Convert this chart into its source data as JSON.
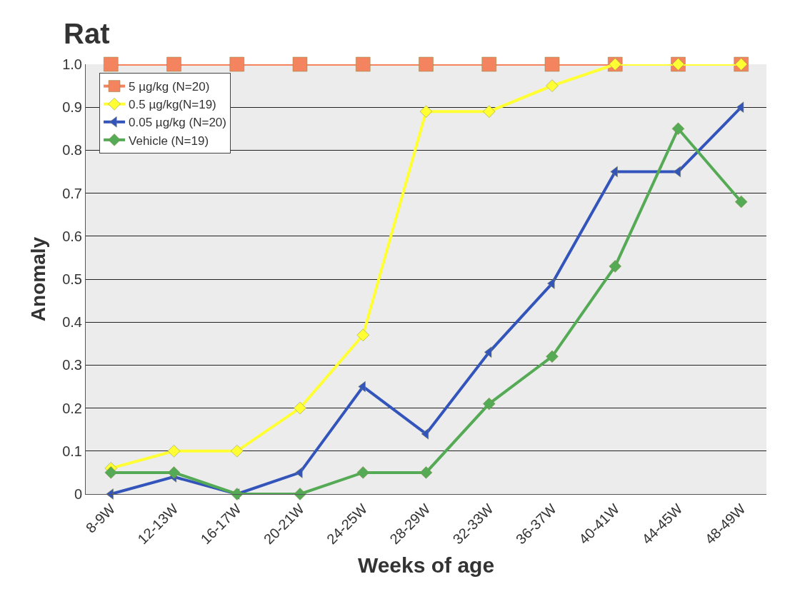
{
  "chart_data": {
    "type": "line",
    "title": "Rat",
    "xlabel": "Weeks of age",
    "ylabel": "Anomaly",
    "categories": [
      "8-9W",
      "12-13W",
      "16-17W",
      "20-21W",
      "24-25W",
      "28-29W",
      "32-33W",
      "36-37W",
      "40-41W",
      "44-45W",
      "48-49W"
    ],
    "series": [
      {
        "name": "5 µg/kg (N=20)",
        "color": "#f4845f",
        "marker": "square",
        "values": [
          1.0,
          1.0,
          1.0,
          1.0,
          1.0,
          1.0,
          1.0,
          1.0,
          1.0,
          1.0,
          1.0
        ]
      },
      {
        "name": "0.5 µg/kg(N=19)",
        "color": "#ffff33",
        "marker": "diamond",
        "values": [
          0.06,
          0.1,
          0.1,
          0.2,
          0.37,
          0.89,
          0.89,
          0.95,
          1.0,
          1.0,
          1.0
        ]
      },
      {
        "name": "0.05 µg/kg (N=20)",
        "color": "#3355bb",
        "marker": "triangle",
        "values": [
          0,
          0.04,
          0,
          0.05,
          0.25,
          0.14,
          0.33,
          0.49,
          0.75,
          0.75,
          0.9
        ]
      },
      {
        "name": "Vehicle (N=19)",
        "color": "#55aa55",
        "marker": "diamond",
        "values": [
          0.05,
          0.05,
          0,
          0,
          0.05,
          0.05,
          0.21,
          0.32,
          0.53,
          0.85,
          0.68
        ]
      }
    ],
    "ylim": [
      0,
      1.0
    ],
    "yticks": [
      0,
      0.1,
      0.2,
      0.3,
      0.4,
      0.5,
      0.6,
      0.7,
      0.8,
      0.9,
      {
        "value": 1.0,
        "label": "1.0"
      }
    ],
    "grid": "y",
    "legend": "top left"
  }
}
